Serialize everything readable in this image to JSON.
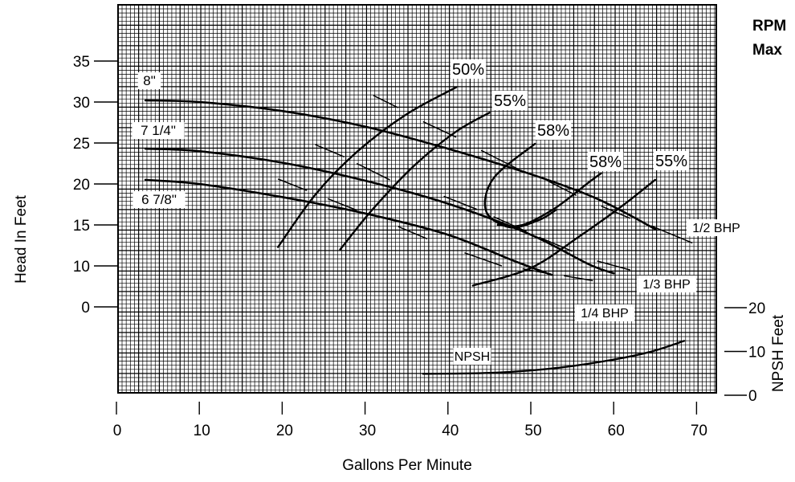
{
  "corner_text": {
    "line1": "RPM",
    "line2": "Max"
  },
  "chart_data": {
    "type": "line",
    "title": "",
    "xlabel": "Gallons Per Minute",
    "ylabel": "Head In Feet",
    "y2label": "NPSH Feet",
    "xlim": [
      0,
      72
    ],
    "ylim": [
      -10,
      37
    ],
    "x_ticks": [
      0,
      10,
      20,
      30,
      40,
      50,
      60,
      70
    ],
    "y_ticks": [
      0,
      10,
      15,
      20,
      25,
      30,
      35
    ],
    "y_tick_labels": [
      "0",
      "10",
      "15",
      "20",
      "25",
      "30",
      "35"
    ],
    "y2_ticks": [
      0,
      10,
      20
    ],
    "y2_tick_labels": [
      "0",
      "10",
      "20"
    ],
    "grid": true,
    "impeller_curves": [
      {
        "name": "8\"",
        "points": [
          [
            3.5,
            30.2
          ],
          [
            10,
            30.0
          ],
          [
            20,
            28.9
          ],
          [
            30,
            27.0
          ],
          [
            40,
            24.3
          ],
          [
            50,
            21.2
          ],
          [
            58,
            18.2
          ],
          [
            65,
            14.5
          ]
        ]
      },
      {
        "name": "7 1/4\"",
        "points": [
          [
            3.5,
            24.3
          ],
          [
            10,
            24.0
          ],
          [
            20,
            22.6
          ],
          [
            30,
            20.4
          ],
          [
            40,
            17.6
          ],
          [
            50,
            13.8
          ],
          [
            57,
            10.2
          ],
          [
            60,
            8.2
          ]
        ]
      },
      {
        "name": "6 7/8\"",
        "points": [
          [
            3.5,
            20.5
          ],
          [
            10,
            20.0
          ],
          [
            20,
            18.4
          ],
          [
            30,
            16.4
          ],
          [
            40,
            13.8
          ],
          [
            48,
            10.6
          ],
          [
            52.5,
            7.8
          ]
        ]
      }
    ],
    "efficiency_curves": [
      {
        "name": "50%",
        "points": [
          [
            19.5,
            12.3
          ],
          [
            24,
            18.7
          ],
          [
            29,
            23.9
          ],
          [
            35,
            28.5
          ],
          [
            41,
            31.8
          ]
        ]
      },
      {
        "name": "55%",
        "points": [
          [
            27,
            12.0
          ],
          [
            31,
            17.0
          ],
          [
            36,
            22.3
          ],
          [
            41,
            26.4
          ],
          [
            45,
            28.7
          ]
        ]
      },
      {
        "name": "58%",
        "points": [
          [
            50.5,
            24.9
          ],
          [
            45.5,
            20.7
          ],
          [
            44.6,
            16.7
          ],
          [
            47.5,
            14.7
          ],
          [
            51,
            15.6
          ],
          [
            53,
            16.8
          ]
        ]
      },
      {
        "name": "58%",
        "points": [
          [
            46,
            15.0
          ],
          [
            49,
            15.0
          ],
          [
            53,
            17.1
          ],
          [
            57,
            20.2
          ],
          [
            58.5,
            21.3
          ]
        ]
      },
      {
        "name": "55%",
        "points": [
          [
            43,
            5.2
          ],
          [
            50,
            9.5
          ],
          [
            56,
            13.7
          ],
          [
            61,
            17.3
          ],
          [
            65,
            20.5
          ]
        ]
      }
    ],
    "bhp_lines": [
      {
        "name": "1/2 BHP",
        "segments": [
          [
            [
              31,
              30.8
            ],
            [
              34,
              29.3
            ]
          ],
          [
            [
              37,
              27.6
            ],
            [
              41,
              25.7
            ]
          ],
          [
            [
              44,
              24.1
            ],
            [
              48.5,
              21.8
            ]
          ],
          [
            [
              52,
              20.4
            ],
            [
              55.5,
              18.6
            ]
          ],
          [
            [
              58.5,
              17.3
            ],
            [
              62,
              15.8
            ]
          ],
          [
            [
              64.5,
              14.9
            ],
            [
              69.5,
              12.8
            ]
          ]
        ]
      },
      {
        "name": "1/3 BHP",
        "segments": [
          [
            [
              24,
              24.8
            ],
            [
              27.5,
              23.3
            ]
          ],
          [
            [
              29,
              22.5
            ],
            [
              33,
              20.5
            ]
          ],
          [
            [
              39.5,
              18.5
            ],
            [
              43.5,
              16.9
            ]
          ],
          [
            [
              45.5,
              16.0
            ],
            [
              49.5,
              14.2
            ]
          ],
          [
            [
              51,
              13.5
            ],
            [
              55,
              11.8
            ]
          ],
          [
            [
              58,
              10.6
            ],
            [
              62,
              9.0
            ]
          ]
        ]
      },
      {
        "name": "1/4 BHP",
        "segments": [
          [
            [
              19.5,
              20.6
            ],
            [
              23,
              19.2
            ]
          ],
          [
            [
              25.5,
              18.2
            ],
            [
              29,
              16.8
            ]
          ],
          [
            [
              34,
              14.8
            ],
            [
              37.5,
              13.3
            ]
          ],
          [
            [
              42,
              11.6
            ],
            [
              46.5,
              10.0
            ]
          ],
          [
            [
              49,
              9.3
            ],
            [
              52.5,
              8.0
            ]
          ],
          [
            [
              54,
              7.6
            ],
            [
              57.5,
              6.4
            ]
          ]
        ]
      }
    ],
    "npsh_curve": {
      "name": "NPSH",
      "axis": "y2",
      "points": [
        [
          37,
          4.9
        ],
        [
          45,
          5.1
        ],
        [
          52,
          6.0
        ],
        [
          58,
          7.5
        ],
        [
          64,
          9.7
        ],
        [
          68.5,
          12.4
        ]
      ]
    }
  }
}
